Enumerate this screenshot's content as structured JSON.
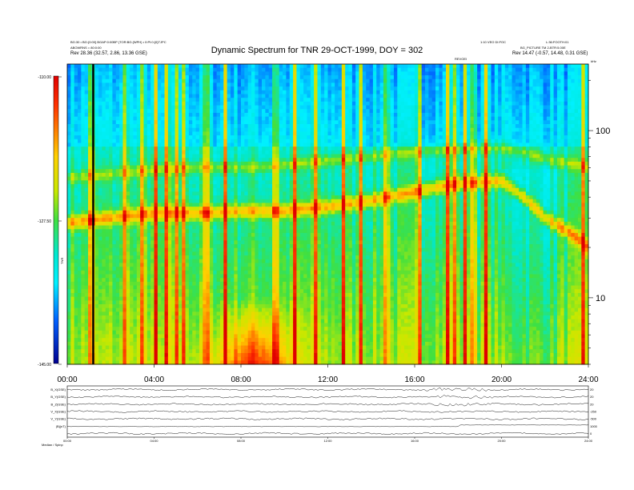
{
  "header": {
    "title": "Dynamic Spectrum for TNR 29-OCT-1999, DOY = 302",
    "left_top_line": "BG:30 • BG:{0:00} BGAP:0:00BP (TOR:BG:{WPH) • 0:PI:0:{0}TJPC",
    "left_line2": "ABOWRNS = 80:0:00",
    "left_line3": "Rev 28.36 (32.57, 2.86, 13.36 GSE)",
    "right_top_line1": "1:10 VEO DI:FOC",
    "right_top_line2": "L:36:FOOTH:01",
    "right_line2": "BG_PICTURE TM 2-BTR:5.00E",
    "right_line3": "Rev 14.47 (-0.57, 14.48, 0.31 GSE)",
    "marker_label": "REVOEI"
  },
  "colorbar": {
    "labels": [
      "-110.00",
      "-127.50",
      "-145.00"
    ],
    "unit_label": "TNR"
  },
  "chart_data": [
    {
      "type": "heatmap",
      "title": "Dynamic Spectrum for TNR 29-OCT-1999, DOY = 302",
      "x_tick_labels": [
        "00:00",
        "04:00",
        "08:00",
        "12:00",
        "16:00",
        "20:00",
        "24:00"
      ],
      "x_range_hours": [
        0,
        24
      ],
      "y_scale": "log",
      "y_unit": "kHz",
      "y_range": [
        4,
        250
      ],
      "y_tick_labels": [
        "100",
        "10"
      ],
      "z_range": [
        -145,
        -110
      ],
      "z_tick_labels": [
        "-110.00",
        "-127.50",
        "-145.00"
      ],
      "features": {
        "upper_band_khz": [
          [
            0,
            52
          ],
          [
            2,
            55
          ],
          [
            4,
            58
          ],
          [
            6,
            60
          ],
          [
            8,
            60
          ],
          [
            10,
            62
          ],
          [
            12,
            66
          ],
          [
            14,
            70
          ],
          [
            16,
            74
          ],
          [
            18,
            78
          ],
          [
            20,
            80
          ],
          [
            22,
            68
          ],
          [
            24,
            60
          ]
        ],
        "lower_band_khz": [
          [
            0,
            28
          ],
          [
            2,
            30
          ],
          [
            4,
            32
          ],
          [
            6,
            32
          ],
          [
            8,
            33
          ],
          [
            10,
            33
          ],
          [
            12,
            35
          ],
          [
            14,
            38
          ],
          [
            16,
            43
          ],
          [
            18,
            48
          ],
          [
            20,
            50
          ],
          [
            22,
            30
          ],
          [
            24,
            20
          ]
        ],
        "bursts_hours": [
          1.1,
          2.7,
          3.5,
          4.1,
          4.6,
          5.0,
          5.4,
          6.4,
          7.3,
          9.6,
          10.5,
          11.4,
          12.7,
          13.5,
          14.7,
          16.2,
          17.5,
          17.8,
          18.3,
          18.7,
          19.3,
          23.8
        ]
      }
    },
    {
      "type": "line",
      "x_tick_labels": [
        "00:00",
        "04:00",
        "08:00",
        "12:00",
        "16:00",
        "20:00",
        "24:00"
      ],
      "series": [
        {
          "name": "B_X(GSE)",
          "right_label": "20"
        },
        {
          "name": "B_Y(GSE)",
          "right_label": "20"
        },
        {
          "name": "B_Z(GSE)",
          "right_label": "20"
        },
        {
          "name": "V_X(GSE)",
          "right_label": "-250"
        },
        {
          "name": "V_Y(GSE)",
          "right_label": "-500"
        },
        {
          "name": "|B|(nT)",
          "right_label": "1000"
        },
        {
          "name": "",
          "right_label": "0"
        }
      ],
      "footer_label": "Median / Spinp"
    }
  ]
}
